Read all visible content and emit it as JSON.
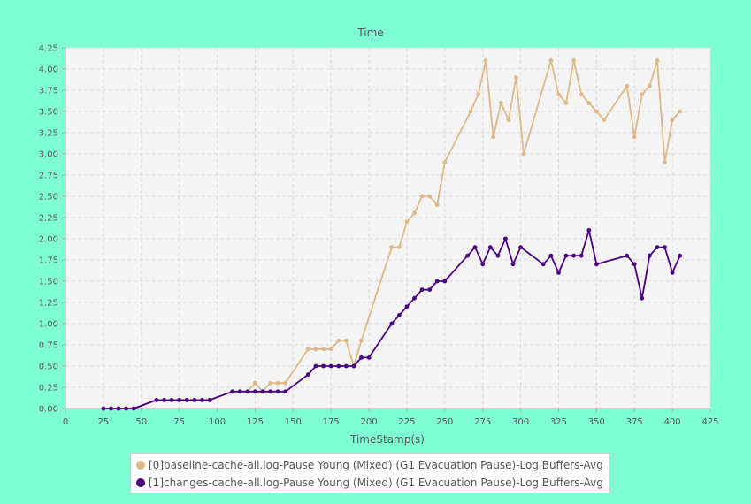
{
  "chart_data": {
    "type": "line",
    "title": "Time",
    "xlabel": "TimeStamp(s)",
    "ylabel": "",
    "xlim": [
      0,
      425
    ],
    "ylim": [
      0,
      4.25
    ],
    "xticks": [
      0,
      25,
      50,
      75,
      100,
      125,
      150,
      175,
      200,
      225,
      250,
      275,
      300,
      325,
      350,
      375,
      400,
      425
    ],
    "yticks": [
      "0.00",
      "0.25",
      "0.50",
      "0.75",
      "1.00",
      "1.25",
      "1.50",
      "1.75",
      "2.00",
      "2.25",
      "2.50",
      "2.75",
      "3.00",
      "3.25",
      "3.50",
      "3.75",
      "4.00",
      "4.25"
    ],
    "grid": true,
    "legend_position": "bottom",
    "series": [
      {
        "name": "[0]baseline-cache-all.log-Pause Young (Mixed) (G1 Evacuation Pause)-Log Buffers-Avg",
        "color": "#deb887",
        "points": [
          [
            25,
            0.0
          ],
          [
            30,
            0.0
          ],
          [
            35,
            0.0
          ],
          [
            40,
            0.0
          ],
          [
            45,
            0.0
          ],
          [
            60,
            0.1
          ],
          [
            65,
            0.1
          ],
          [
            70,
            0.1
          ],
          [
            75,
            0.1
          ],
          [
            80,
            0.1
          ],
          [
            85,
            0.1
          ],
          [
            90,
            0.1
          ],
          [
            95,
            0.1
          ],
          [
            110,
            0.2
          ],
          [
            115,
            0.2
          ],
          [
            120,
            0.2
          ],
          [
            125,
            0.3
          ],
          [
            130,
            0.2
          ],
          [
            135,
            0.3
          ],
          [
            140,
            0.3
          ],
          [
            145,
            0.3
          ],
          [
            160,
            0.7
          ],
          [
            165,
            0.7
          ],
          [
            170,
            0.7
          ],
          [
            175,
            0.7
          ],
          [
            180,
            0.8
          ],
          [
            185,
            0.8
          ],
          [
            190,
            0.5
          ],
          [
            195,
            0.8
          ],
          [
            215,
            1.9
          ],
          [
            220,
            1.9
          ],
          [
            225,
            2.2
          ],
          [
            230,
            2.3
          ],
          [
            235,
            2.5
          ],
          [
            240,
            2.5
          ],
          [
            245,
            2.4
          ],
          [
            250,
            2.9
          ],
          [
            267,
            3.5
          ],
          [
            272,
            3.7
          ],
          [
            277,
            4.1
          ],
          [
            282,
            3.2
          ],
          [
            287,
            3.6
          ],
          [
            292,
            3.4
          ],
          [
            297,
            3.9
          ],
          [
            302,
            3.0
          ],
          [
            320,
            4.1
          ],
          [
            325,
            3.7
          ],
          [
            330,
            3.6
          ],
          [
            335,
            4.1
          ],
          [
            340,
            3.7
          ],
          [
            345,
            3.6
          ],
          [
            350,
            3.5
          ],
          [
            355,
            3.4
          ],
          [
            370,
            3.8
          ],
          [
            375,
            3.2
          ],
          [
            380,
            3.7
          ],
          [
            385,
            3.8
          ],
          [
            390,
            4.1
          ],
          [
            395,
            2.9
          ],
          [
            400,
            3.4
          ],
          [
            405,
            3.5
          ]
        ]
      },
      {
        "name": "[1]changes-cache-all.log-Pause Young (Mixed) (G1 Evacuation Pause)-Log Buffers-Avg",
        "color": "#4b0082",
        "points": [
          [
            25,
            0.0
          ],
          [
            30,
            0.0
          ],
          [
            35,
            0.0
          ],
          [
            40,
            0.0
          ],
          [
            45,
            0.0
          ],
          [
            60,
            0.1
          ],
          [
            65,
            0.1
          ],
          [
            70,
            0.1
          ],
          [
            75,
            0.1
          ],
          [
            80,
            0.1
          ],
          [
            85,
            0.1
          ],
          [
            90,
            0.1
          ],
          [
            95,
            0.1
          ],
          [
            110,
            0.2
          ],
          [
            115,
            0.2
          ],
          [
            120,
            0.2
          ],
          [
            125,
            0.2
          ],
          [
            130,
            0.2
          ],
          [
            135,
            0.2
          ],
          [
            140,
            0.2
          ],
          [
            145,
            0.2
          ],
          [
            160,
            0.4
          ],
          [
            165,
            0.5
          ],
          [
            170,
            0.5
          ],
          [
            175,
            0.5
          ],
          [
            180,
            0.5
          ],
          [
            185,
            0.5
          ],
          [
            190,
            0.5
          ],
          [
            195,
            0.6
          ],
          [
            200,
            0.6
          ],
          [
            215,
            1.0
          ],
          [
            220,
            1.1
          ],
          [
            225,
            1.2
          ],
          [
            230,
            1.3
          ],
          [
            235,
            1.4
          ],
          [
            240,
            1.4
          ],
          [
            245,
            1.5
          ],
          [
            250,
            1.5
          ],
          [
            265,
            1.8
          ],
          [
            270,
            1.9
          ],
          [
            275,
            1.7
          ],
          [
            280,
            1.9
          ],
          [
            285,
            1.8
          ],
          [
            290,
            2.0
          ],
          [
            295,
            1.7
          ],
          [
            300,
            1.9
          ],
          [
            315,
            1.7
          ],
          [
            320,
            1.8
          ],
          [
            325,
            1.6
          ],
          [
            330,
            1.8
          ],
          [
            335,
            1.8
          ],
          [
            340,
            1.8
          ],
          [
            345,
            2.1
          ],
          [
            350,
            1.7
          ],
          [
            370,
            1.8
          ],
          [
            375,
            1.7
          ],
          [
            380,
            1.3
          ],
          [
            385,
            1.8
          ],
          [
            390,
            1.9
          ],
          [
            395,
            1.9
          ],
          [
            400,
            1.6
          ],
          [
            405,
            1.8
          ]
        ]
      }
    ]
  }
}
